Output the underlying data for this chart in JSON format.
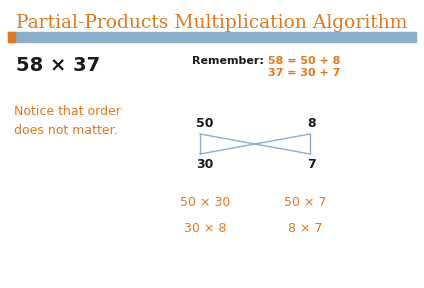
{
  "title": "Partial-Products Multiplication Algorithm",
  "title_color": "#E07820",
  "title_fontsize": 13.5,
  "bg_color": "#FFFFFF",
  "header_bar_color": "#8BAFC9",
  "orange_accent_color": "#E07820",
  "problem_text": "58 × 37",
  "problem_color": "#1A1A1A",
  "problem_fontsize": 14,
  "remember_label": "Remember:",
  "remember_line1": "58 = 50 + 8",
  "remember_line2": "37 = 30 + 7",
  "remember_color": "#1A1A1A",
  "notice_text": "Notice that order\ndoes not matter.",
  "notice_color": "#E07820",
  "notice_fontsize": 9,
  "box_top_left": "50",
  "box_top_right": "8",
  "box_bot_left": "30",
  "box_bot_right": "7",
  "box_color": "#8BAFC9",
  "products": [
    "50 × 30",
    "50 × 7",
    "30 × 8",
    "8 × 7"
  ],
  "products_color": "#E07820",
  "products_fontsize": 9
}
